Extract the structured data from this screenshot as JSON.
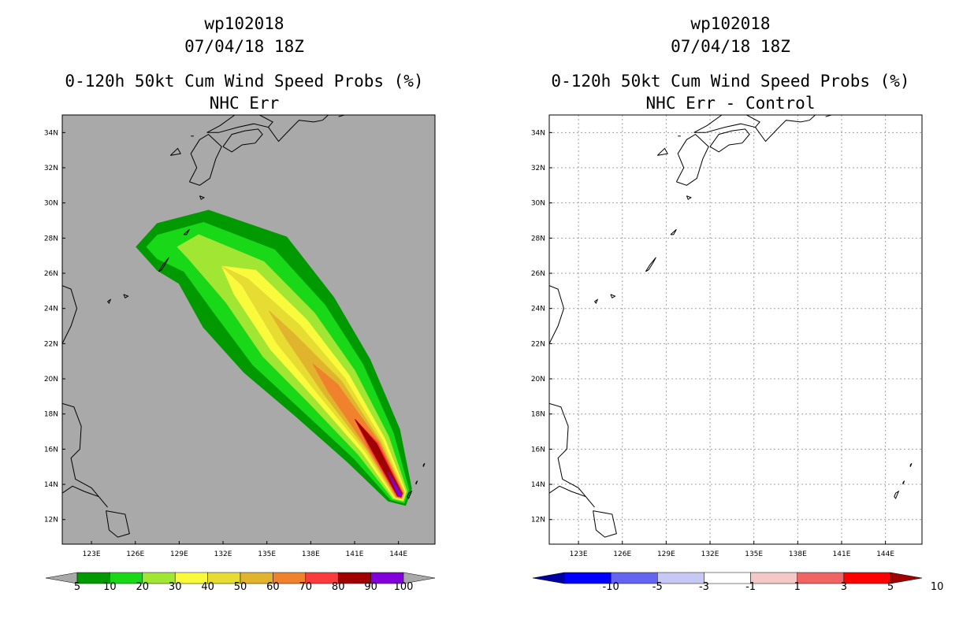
{
  "left_panel": {
    "storm_id": "wp102018",
    "datetime": "07/04/18 18Z",
    "title": "0-120h 50kt Cum Wind Speed Probs (%)",
    "subtitle": "NHC Err"
  },
  "right_panel": {
    "storm_id": "wp102018",
    "datetime": "07/04/18 18Z",
    "title": "0-120h 50kt Cum Wind Speed Probs (%)",
    "subtitle": "NHC Err - Control"
  },
  "chart_data": [
    {
      "type": "heatmap",
      "title": "0-120h 50kt Cum Wind Speed Probs (%)",
      "subtitle": "NHC Err",
      "x_ticks": [
        "123E",
        "126E",
        "129E",
        "132E",
        "135E",
        "138E",
        "141E",
        "144E"
      ],
      "x_tick_values": [
        123,
        126,
        129,
        132,
        135,
        138,
        141,
        144
      ],
      "y_ticks": [
        "12N",
        "14N",
        "16N",
        "18N",
        "20N",
        "22N",
        "24N",
        "26N",
        "28N",
        "30N",
        "32N",
        "34N"
      ],
      "y_tick_values": [
        12,
        14,
        16,
        18,
        20,
        22,
        24,
        26,
        28,
        30,
        32,
        34
      ],
      "xlim": [
        121.0,
        146.5
      ],
      "ylim": [
        10.6,
        35.0
      ],
      "grid": false,
      "background": "#a9a9a9",
      "colorbar": {
        "labels": [
          "5",
          "10",
          "20",
          "30",
          "40",
          "50",
          "60",
          "70",
          "80",
          "90",
          "100"
        ],
        "colors": [
          "#009a00",
          "#18d818",
          "#a0e632",
          "#fafa3c",
          "#e6dc32",
          "#e1b42d",
          "#f0822d",
          "#fa3c3c",
          "#a00000",
          "#8200dc"
        ]
      },
      "probability_track": {
        "comment": "Probability swath along storm track: lon, lat, half-width (deg) of each contour band",
        "track": [
          [
            144.1,
            13.4
          ],
          [
            142.3,
            16.2
          ],
          [
            139.5,
            19.5
          ],
          [
            136.5,
            22.5
          ],
          [
            133.5,
            25.5
          ],
          [
            130.0,
            27.5
          ],
          [
            127.5,
            27.5
          ]
        ],
        "bands": [
          {
            "level": 5,
            "w": [
              0.9,
              2.1,
              3.2,
              4.0,
              4.2,
              2.7,
              1.6
            ]
          },
          {
            "level": 10,
            "w": [
              0.7,
              1.6,
              2.6,
              3.2,
              3.0,
              1.8,
              0.8
            ]
          },
          {
            "level": 20,
            "w": [
              0.55,
              1.2,
              1.9,
              2.3,
              1.9,
              0.9,
              0
            ]
          },
          {
            "level": 30,
            "w": [
              0.45,
              0.9,
              1.4,
              1.6,
              1.1,
              0,
              0
            ]
          },
          {
            "level": 40,
            "w": [
              0.38,
              0.7,
              1.05,
              1.0,
              0.3,
              0,
              0
            ]
          },
          {
            "level": 50,
            "w": [
              0.32,
              0.55,
              0.75,
              0.3,
              0,
              0,
              0
            ]
          },
          {
            "level": 60,
            "w": [
              0.27,
              0.45,
              0.4,
              0,
              0,
              0,
              0
            ]
          },
          {
            "level": 70,
            "w": [
              0.22,
              0.35,
              0,
              0,
              0,
              0,
              0
            ]
          },
          {
            "level": 80,
            "w": [
              0.17,
              0.25,
              0,
              0,
              0,
              0,
              0
            ]
          },
          {
            "level": 90,
            "w": [
              0.12,
              0,
              0,
              0,
              0,
              0,
              0
            ]
          }
        ]
      }
    },
    {
      "type": "heatmap",
      "title": "0-120h 50kt Cum Wind Speed Probs (%)",
      "subtitle": "NHC Err - Control",
      "x_ticks": [
        "123E",
        "126E",
        "129E",
        "132E",
        "135E",
        "138E",
        "141E",
        "144E"
      ],
      "x_tick_values": [
        123,
        126,
        129,
        132,
        135,
        138,
        141,
        144
      ],
      "y_ticks": [
        "12N",
        "14N",
        "16N",
        "18N",
        "20N",
        "22N",
        "24N",
        "26N",
        "28N",
        "30N",
        "32N",
        "34N"
      ],
      "y_tick_values": [
        12,
        14,
        16,
        18,
        20,
        22,
        24,
        26,
        28,
        30,
        32,
        34
      ],
      "xlim": [
        121.0,
        146.5
      ],
      "ylim": [
        10.6,
        35.0
      ],
      "grid": true,
      "background": "#ffffff",
      "colorbar": {
        "labels": [
          "-10",
          "-5",
          "-3",
          "-1",
          "1",
          "3",
          "5",
          "10"
        ],
        "colors": [
          "#0000a0",
          "#0000ff",
          "#6464f0",
          "#c8c8f5",
          "#ffffff",
          "#f5c8c8",
          "#f06464",
          "#ff0000",
          "#a00000"
        ]
      }
    }
  ]
}
